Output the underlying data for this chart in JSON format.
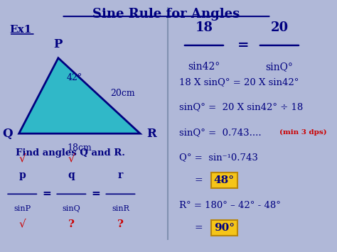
{
  "title": "Sine Rule for Angles",
  "bg_color": "#b0b8d8",
  "title_color": "#000080",
  "text_color": "#000080",
  "red_color": "#cc0000",
  "triangle_fill": "#30b8c8",
  "triangle_outline": "#000080",
  "ex1_label": "Ex1",
  "angle_label": "42°",
  "side_label_1": "20cm",
  "side_label_2": "18cm",
  "find_text": "Find angles Q and R.",
  "box_color": "#f5c518",
  "box_edge_color": "#b8860b"
}
